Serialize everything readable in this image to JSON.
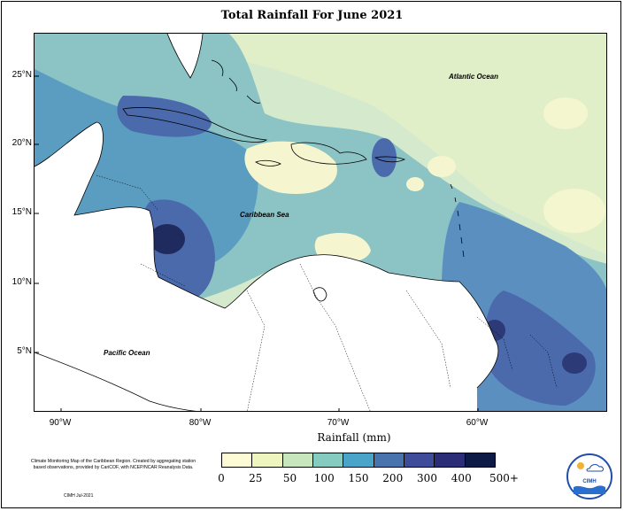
{
  "title": "Total Rainfall For June 2021",
  "axes": {
    "y_ticks": [
      "25°N",
      "20°N",
      "15°N",
      "10°N",
      "5°N"
    ],
    "x_ticks": [
      "90°W",
      "80°W",
      "70°W",
      "60°W"
    ],
    "x_title": "Rainfall (mm)"
  },
  "map_labels": {
    "atlantic": "Atlantic Ocean",
    "caribbean": "Caribbean Sea",
    "pacific": "Pacific Ocean"
  },
  "legend": {
    "labels": [
      "0",
      "25",
      "50",
      "100",
      "150",
      "200",
      "300",
      "400",
      "500+"
    ],
    "colors": [
      "#fcfbd5",
      "#eef5bf",
      "#c8e6bd",
      "#86cbc0",
      "#4aa3c8",
      "#4973ad",
      "#3e4c9a",
      "#2b2d77",
      "#0d1a45"
    ]
  },
  "credits": {
    "text": "Climate Monitoring Map of the Caribbean Region. Created by aggregating station based observations, provided by CariCOF, with NCEP/NCAR Reanalysis Data.",
    "date": "CIMH Jul-2021"
  },
  "logo": {
    "text": "CIMH"
  }
}
